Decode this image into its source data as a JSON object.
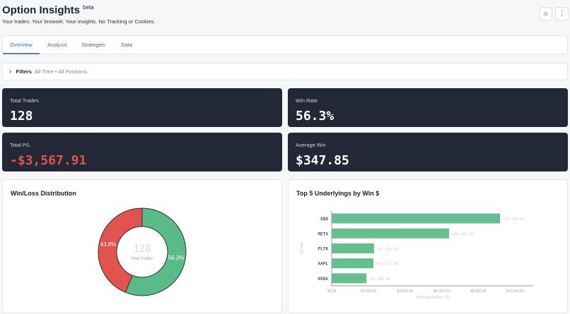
{
  "header": {
    "title": "Option Insights",
    "badge": "beta",
    "subtitle": "Your trades. Your browser. Your insights. No Tracking or Cookies.",
    "theme_icon": "sun-icon",
    "menu_icon": "more-vertical-icon"
  },
  "tabs": [
    {
      "label": "Overview",
      "active": true
    },
    {
      "label": "Analysis"
    },
    {
      "label": "Strategies"
    },
    {
      "label": "Data"
    }
  ],
  "filters": {
    "label": "Filters",
    "summary": "All Time • All Positions"
  },
  "stats": [
    {
      "label": "Total Trades",
      "value": "128"
    },
    {
      "label": "Win Rate",
      "value": "56.3%"
    },
    {
      "label": "Total P/L",
      "value": "-$3,567.91",
      "color": "#e0534f"
    },
    {
      "label": "Average Win",
      "value": "$347.85"
    }
  ],
  "donut": {
    "title": "Win/Loss Distribution",
    "center_value": "128",
    "center_label": "Total Trades",
    "slices": [
      {
        "label": "56.3%",
        "value": 56.3,
        "color": "#5aba88"
      },
      {
        "label": "43.8%",
        "value": 43.8,
        "color": "#e0534f"
      }
    ]
  },
  "chart_data": {
    "type": "bar",
    "orientation": "horizontal",
    "title": "Top 5 Underlyings by Win $",
    "categories": [
      "QQQ",
      "META",
      "PLTR",
      "AAPL",
      "NVDA"
    ],
    "values": [
      9194.35,
      6403.35,
      2314.18,
      2277.98,
      1900.98
    ],
    "data_labels": [
      "+$9,194.35",
      "+$6,403.35",
      "+$2,314.18",
      "+$2,277.98",
      "+$1,900.98"
    ],
    "xlabel": "Winning Dollars ($)",
    "ylabel": "Symbol",
    "xlim": [
      0,
      11000
    ],
    "xticks": [
      "$0.00",
      "$2,000.00",
      "$4,000.00",
      "$6,000.00",
      "$8,000.00",
      "$10,000.00"
    ],
    "color": "#66bf8f"
  }
}
